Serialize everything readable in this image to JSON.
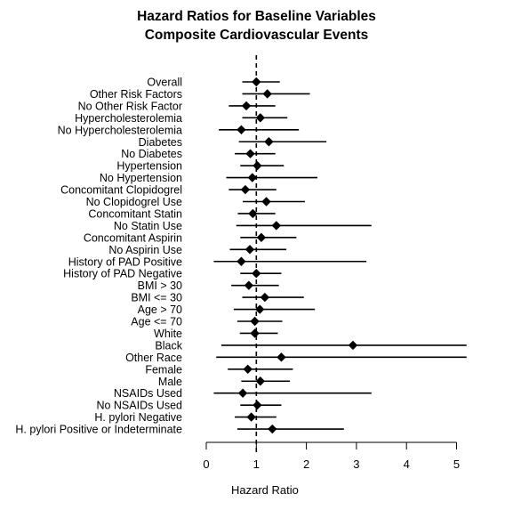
{
  "chart_data": {
    "type": "forest",
    "title_lines": [
      "Hazard Ratios for Baseline Variables",
      "Composite Cardiovascular Events"
    ],
    "xlabel": "Hazard Ratio",
    "xlim": [
      0,
      5.2
    ],
    "x_ticks": [
      "0",
      "1",
      "2",
      "3",
      "4",
      "5"
    ],
    "x_tick_values": [
      0,
      1,
      2,
      3,
      4,
      5
    ],
    "reference_line": 1,
    "reference_line_style": "dashed",
    "marker": "diamond",
    "rows": [
      {
        "label": "Overall",
        "hr": 1.0,
        "lo": 0.72,
        "hi": 1.47
      },
      {
        "label": "Other Risk Factors",
        "hr": 1.22,
        "lo": 0.72,
        "hi": 2.07
      },
      {
        "label": "No Other Risk Factor",
        "hr": 0.8,
        "lo": 0.45,
        "hi": 1.38
      },
      {
        "label": "Hypercholesterolemia",
        "hr": 1.08,
        "lo": 0.72,
        "hi": 1.62
      },
      {
        "label": "No Hypercholesterolemia",
        "hr": 0.7,
        "lo": 0.25,
        "hi": 1.85
      },
      {
        "label": "Diabetes",
        "hr": 1.25,
        "lo": 0.65,
        "hi": 2.4
      },
      {
        "label": "No Diabetes",
        "hr": 0.88,
        "lo": 0.57,
        "hi": 1.38
      },
      {
        "label": "Hypertension",
        "hr": 1.02,
        "lo": 0.68,
        "hi": 1.55
      },
      {
        "label": "No Hypertension",
        "hr": 0.92,
        "lo": 0.4,
        "hi": 2.22
      },
      {
        "label": "Concomitant Clopidogrel",
        "hr": 0.78,
        "lo": 0.45,
        "hi": 1.4
      },
      {
        "label": "No Clopidogrel Use",
        "hr": 1.2,
        "lo": 0.73,
        "hi": 1.97
      },
      {
        "label": "Concomitant Statin",
        "hr": 0.93,
        "lo": 0.63,
        "hi": 1.38
      },
      {
        "label": "No Statin Use",
        "hr": 1.4,
        "lo": 0.6,
        "hi": 3.3
      },
      {
        "label": "Concomitant Aspirin",
        "hr": 1.1,
        "lo": 0.68,
        "hi": 1.8
      },
      {
        "label": "No Aspirin Use",
        "hr": 0.87,
        "lo": 0.47,
        "hi": 1.6
      },
      {
        "label": "History of PAD Positive",
        "hr": 0.7,
        "lo": 0.15,
        "hi": 3.2
      },
      {
        "label": "History of PAD Negative",
        "hr": 1.0,
        "lo": 0.68,
        "hi": 1.5
      },
      {
        "label": "BMI > 30",
        "hr": 0.85,
        "lo": 0.5,
        "hi": 1.45
      },
      {
        "label": "BMI <= 30",
        "hr": 1.17,
        "lo": 0.72,
        "hi": 1.95
      },
      {
        "label": "Age > 70",
        "hr": 1.07,
        "lo": 0.55,
        "hi": 2.17
      },
      {
        "label": "Age <= 70",
        "hr": 0.97,
        "lo": 0.62,
        "hi": 1.52
      },
      {
        "label": "White",
        "hr": 0.97,
        "lo": 0.67,
        "hi": 1.43
      },
      {
        "label": "Black",
        "hr": 2.93,
        "lo": 0.3,
        "hi": 5.2
      },
      {
        "label": "Other Race",
        "hr": 1.5,
        "lo": 0.2,
        "hi": 5.2
      },
      {
        "label": "Female",
        "hr": 0.83,
        "lo": 0.43,
        "hi": 1.73
      },
      {
        "label": "Male",
        "hr": 1.08,
        "lo": 0.7,
        "hi": 1.67
      },
      {
        "label": "NSAIDs Used",
        "hr": 0.73,
        "lo": 0.15,
        "hi": 3.3
      },
      {
        "label": "No NSAIDs Used",
        "hr": 1.02,
        "lo": 0.68,
        "hi": 1.5
      },
      {
        "label": "H. pylori Negative",
        "hr": 0.9,
        "lo": 0.57,
        "hi": 1.4
      },
      {
        "label": "H. pylori Positive or Indeterminate",
        "hr": 1.32,
        "lo": 0.62,
        "hi": 2.75
      }
    ]
  }
}
